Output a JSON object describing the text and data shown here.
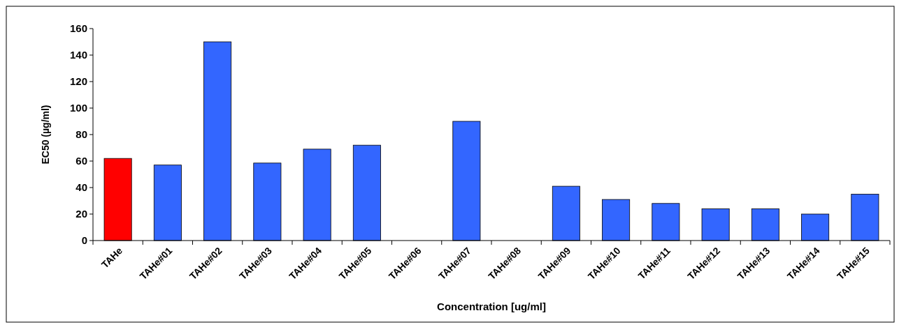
{
  "chart_data": {
    "type": "bar",
    "xlabel": "Concentration [ug/ml]",
    "ylabel": "EC50 (µg/ml)",
    "categories": [
      "TAHe",
      "TAHe#01",
      "TAHe#02",
      "TAHe#03",
      "TAHe#04",
      "TAHe#05",
      "TAHe#06",
      "TAHe#07",
      "TAHe#08",
      "TAHe#09",
      "TAHe#10",
      "TAHe#11",
      "TAHe#12",
      "TAHe#13",
      "TAHe#14",
      "TAHe#15"
    ],
    "values": [
      62,
      57,
      150,
      58.5,
      69,
      72,
      null,
      90,
      null,
      41,
      31,
      28,
      24,
      24,
      20,
      35
    ],
    "colors": [
      "#ff0000",
      "#3366ff",
      "#3366ff",
      "#3366ff",
      "#3366ff",
      "#3366ff",
      null,
      "#3366ff",
      null,
      "#3366ff",
      "#3366ff",
      "#3366ff",
      "#3366ff",
      "#3366ff",
      "#3366ff",
      "#3366ff"
    ],
    "ylim": [
      0,
      160
    ],
    "yticks": [
      0,
      20,
      40,
      60,
      80,
      100,
      120,
      140,
      160
    ],
    "grid": false
  }
}
